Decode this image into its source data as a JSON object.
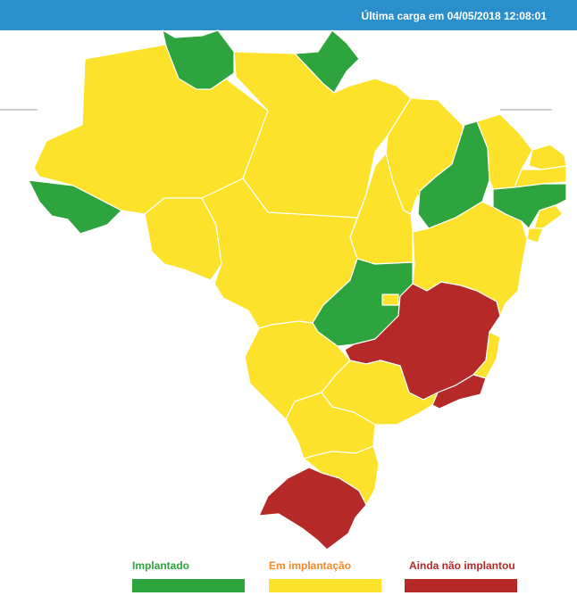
{
  "header": {
    "last_load": "Última carga em 04/05/2018 12:08:01"
  },
  "colors": {
    "header_bg": "#2b8fcb",
    "implantado": "#2ea43e",
    "em_implantacao": "#fde22b",
    "ainda_nao_implantou": "#b52a28"
  },
  "legend": [
    {
      "label": "Implantado",
      "label_color": "#2ea43e",
      "swatch": "#2ea43e"
    },
    {
      "label": "Em implantação",
      "label_color": "#f28a2c",
      "swatch": "#fde22b"
    },
    {
      "label": "Ainda não implantou",
      "label_color": "#b52a28",
      "swatch": "#b52a28"
    }
  ],
  "states": [
    {
      "name": "AC",
      "status": "implantado"
    },
    {
      "name": "AM",
      "status": "em_implantacao"
    },
    {
      "name": "RR",
      "status": "implantado"
    },
    {
      "name": "AP",
      "status": "implantado"
    },
    {
      "name": "PA",
      "status": "em_implantacao"
    },
    {
      "name": "MA",
      "status": "em_implantacao"
    },
    {
      "name": "PI",
      "status": "implantado"
    },
    {
      "name": "CE",
      "status": "em_implantacao"
    },
    {
      "name": "RN",
      "status": "em_implantacao"
    },
    {
      "name": "PB",
      "status": "em_implantacao"
    },
    {
      "name": "PE",
      "status": "implantado"
    },
    {
      "name": "AL",
      "status": "em_implantacao"
    },
    {
      "name": "SE",
      "status": "em_implantacao"
    },
    {
      "name": "BA",
      "status": "em_implantacao"
    },
    {
      "name": "TO",
      "status": "em_implantacao"
    },
    {
      "name": "RO",
      "status": "em_implantacao"
    },
    {
      "name": "MT",
      "status": "em_implantacao"
    },
    {
      "name": "GO",
      "status": "implantado"
    },
    {
      "name": "DF",
      "status": "em_implantacao"
    },
    {
      "name": "MS",
      "status": "em_implantacao"
    },
    {
      "name": "MG",
      "status": "ainda_nao_implantou"
    },
    {
      "name": "ES",
      "status": "em_implantacao"
    },
    {
      "name": "RJ",
      "status": "ainda_nao_implantou"
    },
    {
      "name": "SP",
      "status": "em_implantacao"
    },
    {
      "name": "PR",
      "status": "em_implantacao"
    },
    {
      "name": "SC",
      "status": "em_implantacao"
    },
    {
      "name": "RS",
      "status": "ainda_nao_implantou"
    }
  ]
}
